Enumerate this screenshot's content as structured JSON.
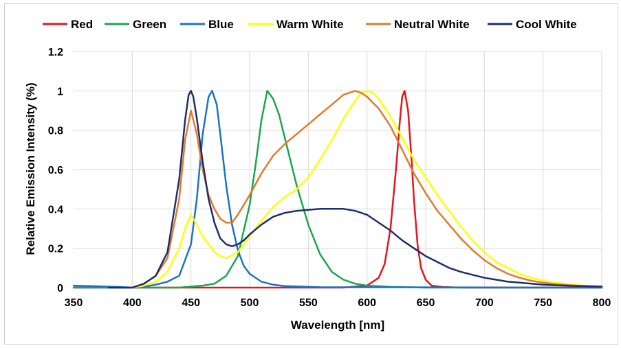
{
  "chart_data": {
    "type": "line",
    "title": "",
    "xlabel": "Wavelength  [nm]",
    "ylabel": "Relative Emission Intensity (%)",
    "xlim": [
      350,
      800
    ],
    "ylim": [
      0,
      1.2
    ],
    "x_ticks": [
      350,
      400,
      450,
      500,
      550,
      600,
      650,
      700,
      750,
      800
    ],
    "x_tick_labels": [
      "350",
      "400",
      "450",
      "500",
      "550",
      "600",
      "650",
      "700",
      "750",
      "800"
    ],
    "y_ticks": [
      0,
      0.2,
      0.4,
      0.6,
      0.8,
      1.0,
      1.2
    ],
    "y_tick_labels": [
      "0",
      "0.2",
      "0.4",
      "0.6",
      "0.8",
      "1",
      "1.2"
    ],
    "grid": true,
    "legend_position": "top",
    "series": [
      {
        "name": "Red",
        "color": "#e8141b",
        "x": [
          350,
          580,
          600,
          610,
          615,
          620,
          625,
          628,
          630,
          632,
          635,
          638,
          640,
          643,
          646,
          650,
          655,
          665,
          680,
          800
        ],
        "values": [
          0,
          0,
          0.01,
          0.05,
          0.12,
          0.3,
          0.62,
          0.85,
          0.97,
          1.0,
          0.9,
          0.65,
          0.45,
          0.22,
          0.1,
          0.04,
          0.01,
          0.003,
          0,
          0
        ]
      },
      {
        "name": "Green",
        "color": "#16a94b",
        "x": [
          350,
          440,
          460,
          470,
          480,
          490,
          500,
          505,
          510,
          515,
          520,
          525,
          530,
          540,
          550,
          560,
          570,
          580,
          590,
          600,
          620,
          650,
          800
        ],
        "values": [
          0,
          0,
          0.01,
          0.02,
          0.06,
          0.16,
          0.42,
          0.62,
          0.85,
          1.0,
          0.96,
          0.88,
          0.76,
          0.52,
          0.32,
          0.17,
          0.08,
          0.04,
          0.02,
          0.01,
          0.004,
          0,
          0
        ]
      },
      {
        "name": "Blue",
        "color": "#1b73c8",
        "x": [
          350,
          380,
          390,
          400,
          410,
          420,
          430,
          440,
          450,
          455,
          460,
          465,
          468,
          472,
          475,
          480,
          485,
          490,
          495,
          500,
          510,
          520,
          530,
          560,
          800
        ],
        "values": [
          0.01,
          0.005,
          0.003,
          0,
          0.005,
          0.015,
          0.03,
          0.06,
          0.22,
          0.45,
          0.78,
          0.97,
          1.0,
          0.93,
          0.78,
          0.52,
          0.32,
          0.19,
          0.11,
          0.07,
          0.03,
          0.015,
          0.008,
          0.002,
          0
        ]
      },
      {
        "name": "Warm White",
        "color": "#ffff00",
        "x": [
          400,
          410,
          420,
          430,
          440,
          445,
          450,
          455,
          460,
          465,
          470,
          475,
          480,
          490,
          500,
          510,
          520,
          530,
          540,
          550,
          560,
          570,
          580,
          590,
          595,
          600,
          605,
          610,
          620,
          630,
          640,
          650,
          660,
          670,
          680,
          690,
          700,
          710,
          720,
          730,
          740,
          750,
          760,
          770,
          780,
          800
        ],
        "values": [
          0,
          0.01,
          0.03,
          0.08,
          0.2,
          0.3,
          0.37,
          0.32,
          0.26,
          0.22,
          0.18,
          0.16,
          0.15,
          0.18,
          0.26,
          0.34,
          0.41,
          0.46,
          0.5,
          0.56,
          0.65,
          0.75,
          0.86,
          0.95,
          0.99,
          1.0,
          0.99,
          0.96,
          0.87,
          0.76,
          0.65,
          0.56,
          0.47,
          0.39,
          0.31,
          0.24,
          0.18,
          0.13,
          0.1,
          0.07,
          0.05,
          0.035,
          0.025,
          0.018,
          0.012,
          0.005
        ]
      },
      {
        "name": "Neutral White",
        "color": "#e07b2b",
        "x": [
          400,
          410,
          420,
          430,
          440,
          445,
          450,
          455,
          460,
          465,
          470,
          475,
          480,
          485,
          490,
          500,
          510,
          520,
          530,
          540,
          550,
          560,
          570,
          580,
          585,
          590,
          595,
          600,
          610,
          620,
          630,
          640,
          650,
          660,
          670,
          680,
          690,
          700,
          710,
          720,
          730,
          740,
          750,
          760,
          770,
          780,
          790,
          800
        ],
        "values": [
          0,
          0.02,
          0.06,
          0.15,
          0.45,
          0.75,
          0.9,
          0.78,
          0.6,
          0.47,
          0.4,
          0.35,
          0.33,
          0.33,
          0.37,
          0.47,
          0.58,
          0.67,
          0.73,
          0.78,
          0.83,
          0.88,
          0.93,
          0.98,
          0.99,
          1.0,
          0.99,
          0.97,
          0.91,
          0.82,
          0.7,
          0.58,
          0.48,
          0.39,
          0.32,
          0.25,
          0.19,
          0.14,
          0.1,
          0.07,
          0.05,
          0.035,
          0.025,
          0.018,
          0.013,
          0.01,
          0.008,
          0.006
        ]
      },
      {
        "name": "Cool White",
        "color": "#1f2d6e",
        "x": [
          380,
          400,
          410,
          420,
          430,
          440,
          445,
          448,
          450,
          452,
          455,
          460,
          465,
          470,
          475,
          480,
          485,
          490,
          495,
          500,
          510,
          520,
          530,
          540,
          550,
          560,
          570,
          580,
          590,
          600,
          610,
          620,
          630,
          640,
          650,
          660,
          670,
          680,
          690,
          700,
          710,
          720,
          730,
          740,
          750,
          760,
          770,
          780,
          800
        ],
        "values": [
          0,
          0,
          0.02,
          0.06,
          0.18,
          0.55,
          0.85,
          0.98,
          1.0,
          0.97,
          0.86,
          0.64,
          0.45,
          0.33,
          0.25,
          0.22,
          0.21,
          0.22,
          0.24,
          0.27,
          0.32,
          0.36,
          0.38,
          0.39,
          0.395,
          0.4,
          0.4,
          0.4,
          0.39,
          0.37,
          0.33,
          0.29,
          0.24,
          0.2,
          0.16,
          0.13,
          0.1,
          0.08,
          0.065,
          0.05,
          0.04,
          0.03,
          0.025,
          0.02,
          0.015,
          0.012,
          0.01,
          0.008,
          0.005
        ]
      }
    ]
  }
}
